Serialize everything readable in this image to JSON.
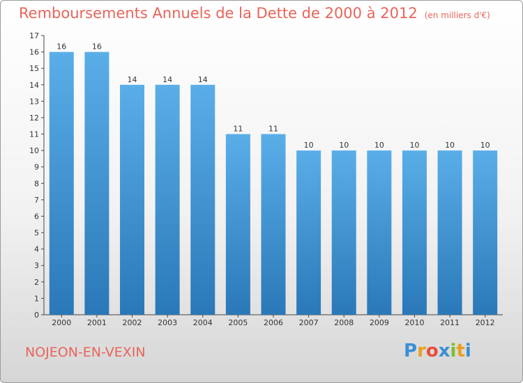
{
  "chart_data": {
    "type": "bar",
    "title": "Remboursements Annuels de la Dette de 2000 à 2012",
    "unit_note": "(en milliers d'€)",
    "categories": [
      "2000",
      "2001",
      "2002",
      "2003",
      "2004",
      "2005",
      "2006",
      "2007",
      "2008",
      "2009",
      "2010",
      "2011",
      "2012"
    ],
    "values": [
      16,
      16,
      14,
      14,
      14,
      11,
      11,
      10,
      10,
      10,
      10,
      10,
      10
    ],
    "data_labels": [
      "16",
      "16",
      "14",
      "14",
      "14",
      "11",
      "11",
      "10",
      "10",
      "10",
      "10",
      "10",
      "10"
    ],
    "ylim": [
      0,
      17
    ],
    "yticks": [
      0,
      1,
      2,
      3,
      4,
      5,
      6,
      7,
      8,
      9,
      10,
      11,
      12,
      13,
      14,
      15,
      16,
      17
    ],
    "grid": false,
    "legend": "none",
    "bar_color_top": "#5aaee8",
    "bar_color_bottom": "#2a78b8"
  },
  "footer": {
    "town": "NOJEON-EN-VEXIN",
    "logo_text": "Proxiti"
  },
  "colors": {
    "title": "#e8645a",
    "axis": "#333333"
  }
}
